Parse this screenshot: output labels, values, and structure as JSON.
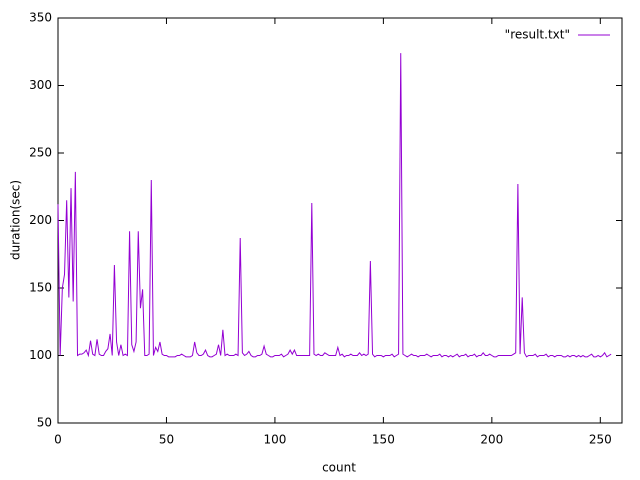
{
  "chart_data": {
    "type": "line",
    "xlabel": "count",
    "ylabel": "duration(sec)",
    "xlim": [
      0,
      260
    ],
    "ylim": [
      50,
      350
    ],
    "xticks": [
      0,
      50,
      100,
      150,
      200,
      250
    ],
    "yticks": [
      50,
      100,
      150,
      200,
      250,
      300,
      350
    ],
    "legend": "top-right",
    "x": [
      0,
      1,
      2,
      3,
      4,
      5,
      6,
      7,
      8,
      9,
      10,
      11,
      12,
      13,
      14,
      15,
      16,
      17,
      18,
      19,
      20,
      21,
      22,
      23,
      24,
      25,
      26,
      27,
      28,
      29,
      30,
      31,
      32,
      33,
      34,
      35,
      36,
      37,
      38,
      39,
      40,
      41,
      42,
      43,
      44,
      45,
      46,
      47,
      48,
      49,
      50,
      51,
      52,
      53,
      54,
      55,
      56,
      57,
      58,
      59,
      60,
      61,
      62,
      63,
      64,
      65,
      66,
      67,
      68,
      69,
      70,
      71,
      72,
      73,
      74,
      75,
      76,
      77,
      78,
      79,
      80,
      81,
      82,
      83,
      84,
      85,
      86,
      87,
      88,
      89,
      90,
      91,
      92,
      93,
      94,
      95,
      96,
      97,
      98,
      99,
      100,
      101,
      102,
      103,
      104,
      105,
      106,
      107,
      108,
      109,
      110,
      111,
      112,
      113,
      114,
      115,
      116,
      117,
      118,
      119,
      120,
      121,
      122,
      123,
      124,
      125,
      126,
      127,
      128,
      129,
      130,
      131,
      132,
      133,
      134,
      135,
      136,
      137,
      138,
      139,
      140,
      141,
      142,
      143,
      144,
      145,
      146,
      147,
      148,
      149,
      150,
      151,
      152,
      153,
      154,
      155,
      156,
      157,
      158,
      159,
      160,
      161,
      162,
      163,
      164,
      165,
      166,
      167,
      168,
      169,
      170,
      171,
      172,
      173,
      174,
      175,
      176,
      177,
      178,
      179,
      180,
      181,
      182,
      183,
      184,
      185,
      186,
      187,
      188,
      189,
      190,
      191,
      192,
      193,
      194,
      195,
      196,
      197,
      198,
      199,
      200,
      201,
      202,
      203,
      204,
      205,
      206,
      207,
      208,
      209,
      210,
      211,
      212,
      213,
      214,
      215,
      216,
      217,
      218,
      219,
      220,
      221,
      222,
      223,
      224,
      225,
      226,
      227,
      228,
      229,
      230,
      231,
      232,
      233,
      234,
      235,
      236,
      237,
      238,
      239,
      240,
      241,
      242,
      243,
      244,
      245,
      246,
      247,
      248,
      249,
      250,
      251,
      252,
      253,
      254,
      255
    ],
    "series": [
      {
        "name": "\"result.txt\"",
        "color": "#9400d3",
        "values": [
          212,
          100,
          150,
          160,
          215,
          143,
          224,
          140,
          236,
          100,
          101,
          101,
          102,
          104,
          100,
          111,
          101,
          100,
          112,
          101,
          100,
          100,
          103,
          105,
          116,
          100,
          167,
          110,
          100,
          108,
          100,
          101,
          100,
          192,
          108,
          103,
          110,
          192,
          135,
          149,
          100,
          100,
          101,
          230,
          100,
          106,
          103,
          110,
          101,
          100,
          100,
          99,
          99,
          99,
          99,
          100,
          100,
          101,
          100,
          99,
          99,
          99,
          100,
          110,
          102,
          100,
          100,
          101,
          104,
          100,
          99,
          99,
          100,
          101,
          108,
          100,
          119,
          100,
          101,
          100,
          100,
          100,
          101,
          100,
          187,
          102,
          100,
          101,
          103,
          100,
          99,
          99,
          100,
          100,
          101,
          107,
          101,
          100,
          99,
          99,
          100,
          100,
          100,
          101,
          99,
          100,
          101,
          104,
          101,
          104,
          100,
          100,
          100,
          100,
          100,
          100,
          100,
          213,
          101,
          100,
          101,
          100,
          100,
          102,
          101,
          100,
          100,
          100,
          100,
          106,
          100,
          101,
          99,
          100,
          100,
          101,
          100,
          100,
          100,
          102,
          100,
          101,
          100,
          101,
          170,
          101,
          99,
          100,
          100,
          100,
          99,
          100,
          100,
          100,
          101,
          99,
          100,
          101,
          324,
          101,
          100,
          99,
          100,
          101,
          100,
          100,
          99,
          100,
          100,
          100,
          101,
          100,
          99,
          100,
          100,
          100,
          101,
          99,
          100,
          100,
          99,
          100,
          99,
          100,
          101,
          99,
          100,
          100,
          101,
          99,
          100,
          100,
          101,
          99,
          100,
          100,
          102,
          100,
          100,
          101,
          100,
          99,
          99,
          100,
          100,
          100,
          100,
          100,
          100,
          100,
          101,
          102,
          227,
          101,
          143,
          102,
          99,
          100,
          100,
          100,
          101,
          99,
          100,
          100,
          100,
          101,
          99,
          100,
          100,
          99,
          100,
          100,
          100,
          99,
          99,
          100,
          99,
          100,
          100,
          99,
          100,
          99,
          100,
          99,
          99,
          100,
          101,
          99,
          99,
          100,
          99,
          100,
          102,
          99,
          100,
          101
        ]
      }
    ]
  }
}
